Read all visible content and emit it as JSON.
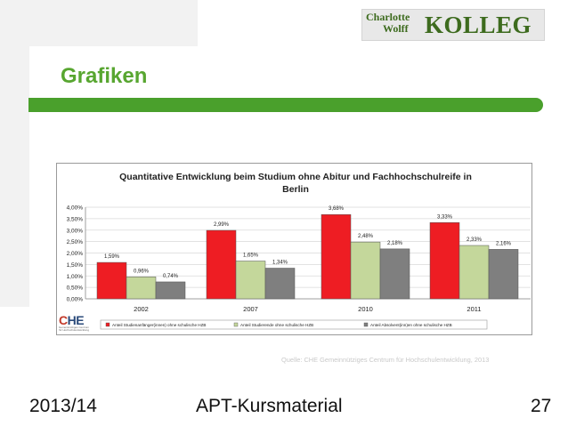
{
  "logo": {
    "line1": "Charlotte",
    "line2": "Wolff",
    "big": "KOLLEG"
  },
  "slide": {
    "title": "Grafiken"
  },
  "source": "Quelle: CHE Gemeinnütziges Centrum für Hochschulentwicklung, 2013",
  "footer": {
    "left": "2013/14",
    "center": "APT-Kursmaterial",
    "page": "27"
  },
  "che": {
    "main_prefix": "C",
    "main_rest": "HE",
    "sub": "Gemeinnütziges Centrum für Hochschulentwicklung"
  },
  "colors": {
    "green_accent": "#4aa02c",
    "title_green": "#58a630",
    "series1": "#ee1d23",
    "series2": "#c4d79b",
    "series3": "#7f7f7f"
  },
  "chart_data": {
    "type": "bar",
    "title": "Quantitative Entwicklung beim Studium ohne Abitur und Fachhochschulreife in Berlin",
    "categories": [
      "2002",
      "2007",
      "2010",
      "2011"
    ],
    "ylim": [
      0,
      4
    ],
    "yticks": [
      "0,00%",
      "0,50%",
      "1,00%",
      "1,50%",
      "2,00%",
      "2,50%",
      "3,00%",
      "3,50%",
      "4,00%"
    ],
    "grid": true,
    "legend_position": "bottom",
    "series": [
      {
        "name": "Anteil Studienanfänger(innen) ohne schulische HZB",
        "values": [
          1.59,
          2.99,
          3.68,
          3.33
        ],
        "labels": [
          "1,59%",
          "2,99%",
          "3,68%",
          "3,33%"
        ],
        "color": "#ee1d23"
      },
      {
        "name": "Anteil Studierende ohne schulische HZB",
        "values": [
          0.96,
          1.65,
          2.48,
          2.33
        ],
        "labels": [
          "0,96%",
          "1,65%",
          "2,48%",
          "2,33%"
        ],
        "color": "#c4d79b"
      },
      {
        "name": "Anteil Absolvent(inn)en ohne schulische HZB",
        "values": [
          0.74,
          1.34,
          2.18,
          2.16
        ],
        "labels": [
          "0,74%",
          "1,34%",
          "2,18%",
          "2,16%"
        ],
        "color": "#7f7f7f"
      }
    ]
  }
}
